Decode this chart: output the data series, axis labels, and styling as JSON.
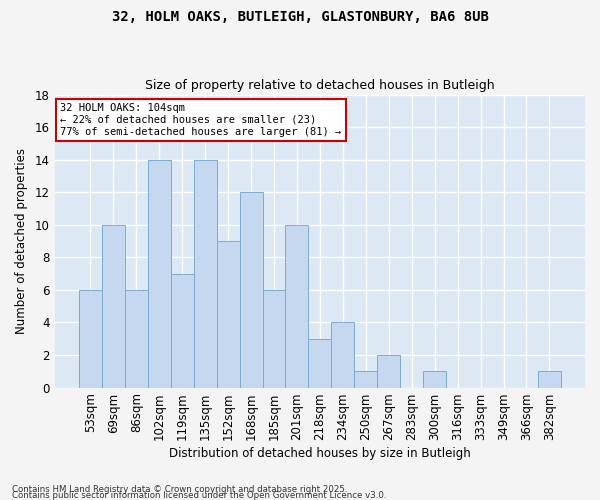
{
  "title1": "32, HOLM OAKS, BUTLEIGH, GLASTONBURY, BA6 8UB",
  "title2": "Size of property relative to detached houses in Butleigh",
  "xlabel": "Distribution of detached houses by size in Butleigh",
  "ylabel": "Number of detached properties",
  "categories": [
    "53sqm",
    "69sqm",
    "86sqm",
    "102sqm",
    "119sqm",
    "135sqm",
    "152sqm",
    "168sqm",
    "185sqm",
    "201sqm",
    "218sqm",
    "234sqm",
    "250sqm",
    "267sqm",
    "283sqm",
    "300sqm",
    "316sqm",
    "333sqm",
    "349sqm",
    "366sqm",
    "382sqm"
  ],
  "values": [
    6,
    10,
    6,
    14,
    7,
    14,
    9,
    12,
    6,
    10,
    3,
    4,
    1,
    2,
    0,
    1,
    0,
    0,
    0,
    0,
    1
  ],
  "bar_color": "#c5d8f0",
  "bar_edge_color": "#7aadd4",
  "highlight_index": 3,
  "annotation_text": "32 HOLM OAKS: 104sqm\n← 22% of detached houses are smaller (23)\n77% of semi-detached houses are larger (81) →",
  "annotation_box_color": "#ffffff",
  "annotation_box_edge": "#cc0000",
  "fig_bg_color": "#f4f4f4",
  "ax_bg_color": "#dde8f5",
  "grid_color": "#ffffff",
  "ylim": [
    0,
    18
  ],
  "yticks": [
    0,
    2,
    4,
    6,
    8,
    10,
    12,
    14,
    16,
    18
  ],
  "footnote1": "Contains HM Land Registry data © Crown copyright and database right 2025.",
  "footnote2": "Contains public sector information licensed under the Open Government Licence v3.0."
}
